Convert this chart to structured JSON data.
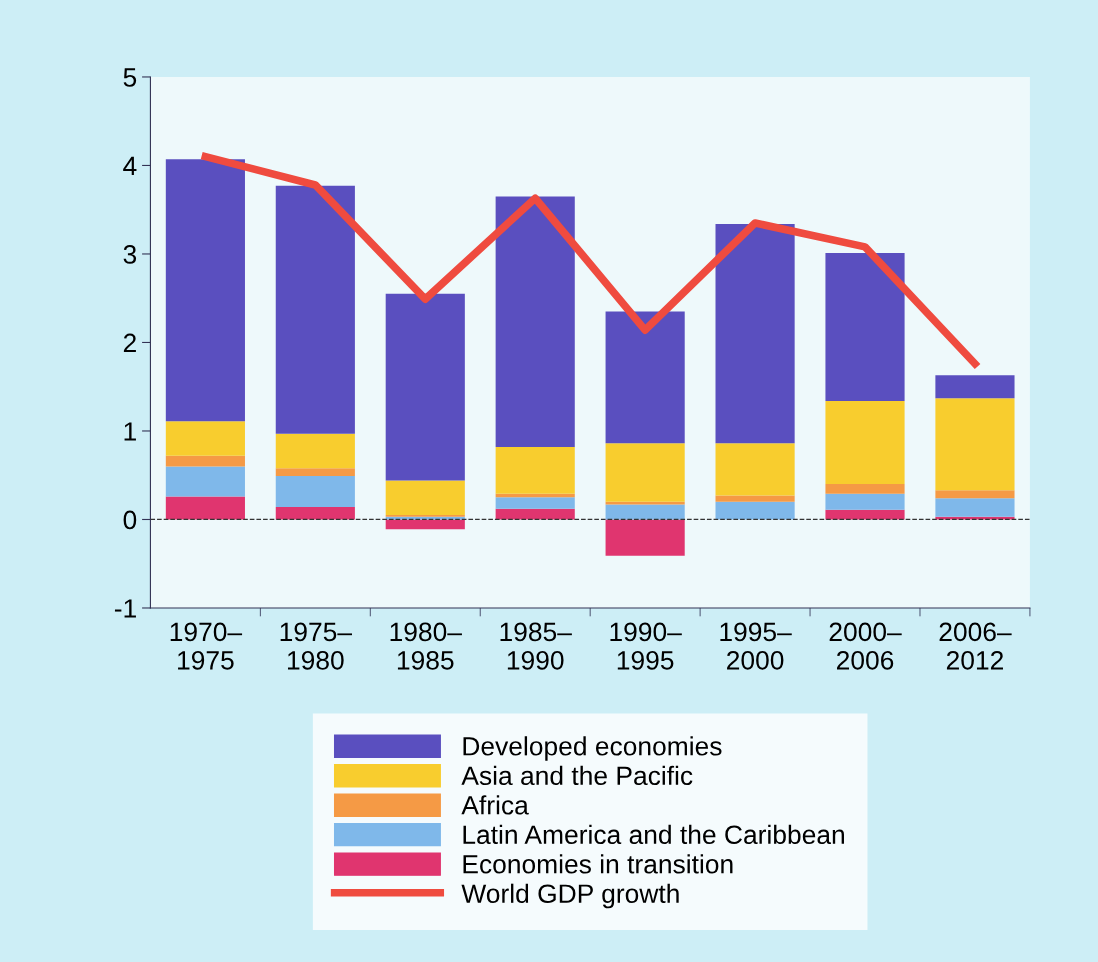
{
  "chart_data": {
    "type": "bar",
    "stacked": true,
    "categories": [
      "1970–\n1975",
      "1975–\n1980",
      "1980–\n1985",
      "1985–\n1990",
      "1990–\n1995",
      "1995–\n2000",
      "2000–\n2006",
      "2006–\n2012"
    ],
    "series": [
      {
        "name": "Economies in transition",
        "color": "#e0356f",
        "values": [
          0.26,
          0.14,
          -0.11,
          0.12,
          -0.41,
          0.0,
          0.11,
          0.03
        ]
      },
      {
        "name": "Latin America and the Caribbean",
        "color": "#7fb8ea",
        "values": [
          0.34,
          0.35,
          0.03,
          0.13,
          0.17,
          0.2,
          0.18,
          0.21
        ]
      },
      {
        "name": "Africa",
        "color": "#f59a45",
        "values": [
          0.12,
          0.09,
          0.02,
          0.04,
          0.03,
          0.07,
          0.11,
          0.09
        ]
      },
      {
        "name": "Asia and the Pacific",
        "color": "#f8cd2e",
        "values": [
          0.39,
          0.39,
          0.39,
          0.53,
          0.66,
          0.59,
          0.94,
          1.04
        ]
      },
      {
        "name": "Developed economies",
        "color": "#5a4fbf",
        "values": [
          2.96,
          2.8,
          2.11,
          2.83,
          1.49,
          2.48,
          1.67,
          0.26
        ]
      },
      {
        "name": "World GDP growth",
        "type": "line",
        "color": "#ef4b3f",
        "values": [
          4.1,
          3.78,
          2.49,
          3.63,
          2.14,
          3.35,
          3.08,
          1.76
        ]
      }
    ],
    "ylim": [
      -1,
      5
    ],
    "yticks": [
      -1,
      0,
      1,
      2,
      3,
      4,
      5
    ],
    "ref_lines": [
      {
        "axis": "y",
        "value": 0,
        "color": "#333333",
        "line_style": "dashed"
      }
    ],
    "grid": false,
    "legend": "bottom"
  }
}
